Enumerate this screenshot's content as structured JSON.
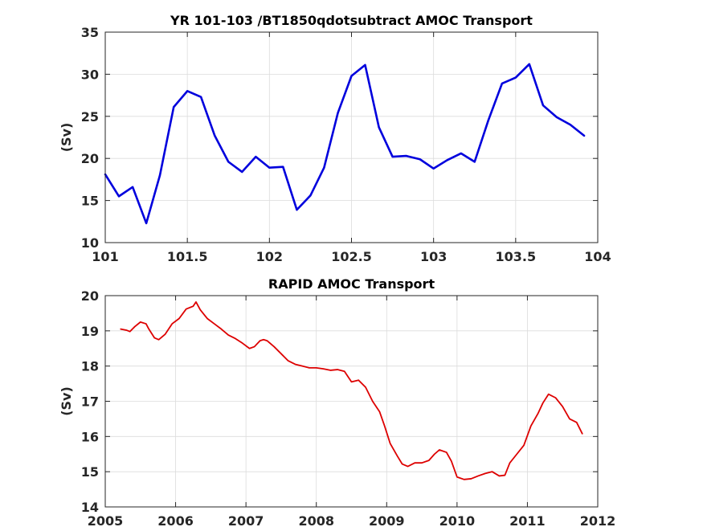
{
  "chart_data": [
    {
      "type": "line",
      "title": "YR 101-103 /BT1850qdotsubtract AMOC Transport",
      "xlabel": "",
      "ylabel": "(Sv)",
      "xlim": [
        101,
        104
      ],
      "ylim": [
        10,
        35
      ],
      "xticks": [
        101,
        101.5,
        102,
        102.5,
        103,
        103.5,
        104
      ],
      "xtick_labels": [
        "101",
        "101.5",
        "102",
        "102.5",
        "103",
        "103.5",
        "104"
      ],
      "yticks": [
        10,
        15,
        20,
        25,
        30,
        35
      ],
      "grid": true,
      "series": [
        {
          "color": "#0000dd",
          "x": [
            101.0,
            101.083,
            101.167,
            101.25,
            101.333,
            101.417,
            101.5,
            101.583,
            101.667,
            101.75,
            101.833,
            101.917,
            102.0,
            102.083,
            102.167,
            102.25,
            102.333,
            102.417,
            102.5,
            102.583,
            102.667,
            102.75,
            102.833,
            102.917,
            103.0,
            103.083,
            103.167,
            103.25,
            103.333,
            103.417,
            103.5,
            103.583,
            103.667,
            103.75,
            103.833,
            103.917
          ],
          "y": [
            18.1,
            15.5,
            16.6,
            12.3,
            18.0,
            26.1,
            28.0,
            27.3,
            22.7,
            19.6,
            18.4,
            20.2,
            18.9,
            19.0,
            13.9,
            15.6,
            18.9,
            25.4,
            29.8,
            31.1,
            23.7,
            20.2,
            20.3,
            19.9,
            18.8,
            19.8,
            20.6,
            19.6,
            24.5,
            28.9,
            29.6,
            31.2,
            26.3,
            24.9,
            24.0,
            22.7
          ]
        }
      ]
    },
    {
      "type": "line",
      "title": "RAPID AMOC Transport",
      "xlabel": "",
      "ylabel": "(Sv)",
      "xlim": [
        2005,
        2012
      ],
      "ylim": [
        14,
        20
      ],
      "xticks": [
        2005,
        2006,
        2007,
        2008,
        2009,
        2010,
        2011,
        2012
      ],
      "xtick_labels": [
        "2005",
        "2006",
        "2007",
        "2008",
        "2009",
        "2010",
        "2011",
        "2012"
      ],
      "yticks": [
        14,
        15,
        16,
        17,
        18,
        19,
        20
      ],
      "grid": true,
      "series": [
        {
          "color": "#dd0000",
          "x": [
            2005.22,
            2005.3,
            2005.35,
            2005.42,
            2005.5,
            2005.58,
            2005.62,
            2005.7,
            2005.76,
            2005.85,
            2005.95,
            2006.05,
            2006.15,
            2006.25,
            2006.29,
            2006.35,
            2006.45,
            2006.55,
            2006.65,
            2006.75,
            2006.85,
            2006.95,
            2007.05,
            2007.12,
            2007.2,
            2007.25,
            2007.3,
            2007.4,
            2007.5,
            2007.6,
            2007.7,
            2007.8,
            2007.9,
            2008.0,
            2008.1,
            2008.2,
            2008.3,
            2008.4,
            2008.5,
            2008.6,
            2008.7,
            2008.8,
            2008.9,
            2008.97,
            2009.05,
            2009.15,
            2009.22,
            2009.3,
            2009.4,
            2009.5,
            2009.6,
            2009.68,
            2009.75,
            2009.85,
            2009.92,
            2010.0,
            2010.1,
            2010.2,
            2010.3,
            2010.4,
            2010.5,
            2010.6,
            2010.68,
            2010.75,
            2010.85,
            2010.95,
            2011.05,
            2011.15,
            2011.22,
            2011.3,
            2011.4,
            2011.5,
            2011.6,
            2011.7,
            2011.78
          ],
          "y": [
            19.05,
            19.02,
            18.98,
            19.12,
            19.25,
            19.2,
            19.05,
            18.8,
            18.75,
            18.9,
            19.2,
            19.35,
            19.62,
            19.7,
            19.82,
            19.6,
            19.35,
            19.2,
            19.05,
            18.88,
            18.78,
            18.65,
            18.5,
            18.55,
            18.72,
            18.75,
            18.72,
            18.55,
            18.35,
            18.15,
            18.05,
            18.0,
            17.95,
            17.95,
            17.92,
            17.88,
            17.9,
            17.85,
            17.55,
            17.6,
            17.4,
            17.0,
            16.7,
            16.3,
            15.8,
            15.45,
            15.22,
            15.15,
            15.25,
            15.25,
            15.32,
            15.5,
            15.62,
            15.55,
            15.3,
            14.85,
            14.78,
            14.8,
            14.88,
            14.95,
            15.0,
            14.88,
            14.9,
            15.25,
            15.5,
            15.75,
            16.3,
            16.65,
            16.95,
            17.2,
            17.1,
            16.85,
            16.5,
            16.4,
            16.08
          ]
        }
      ]
    }
  ]
}
